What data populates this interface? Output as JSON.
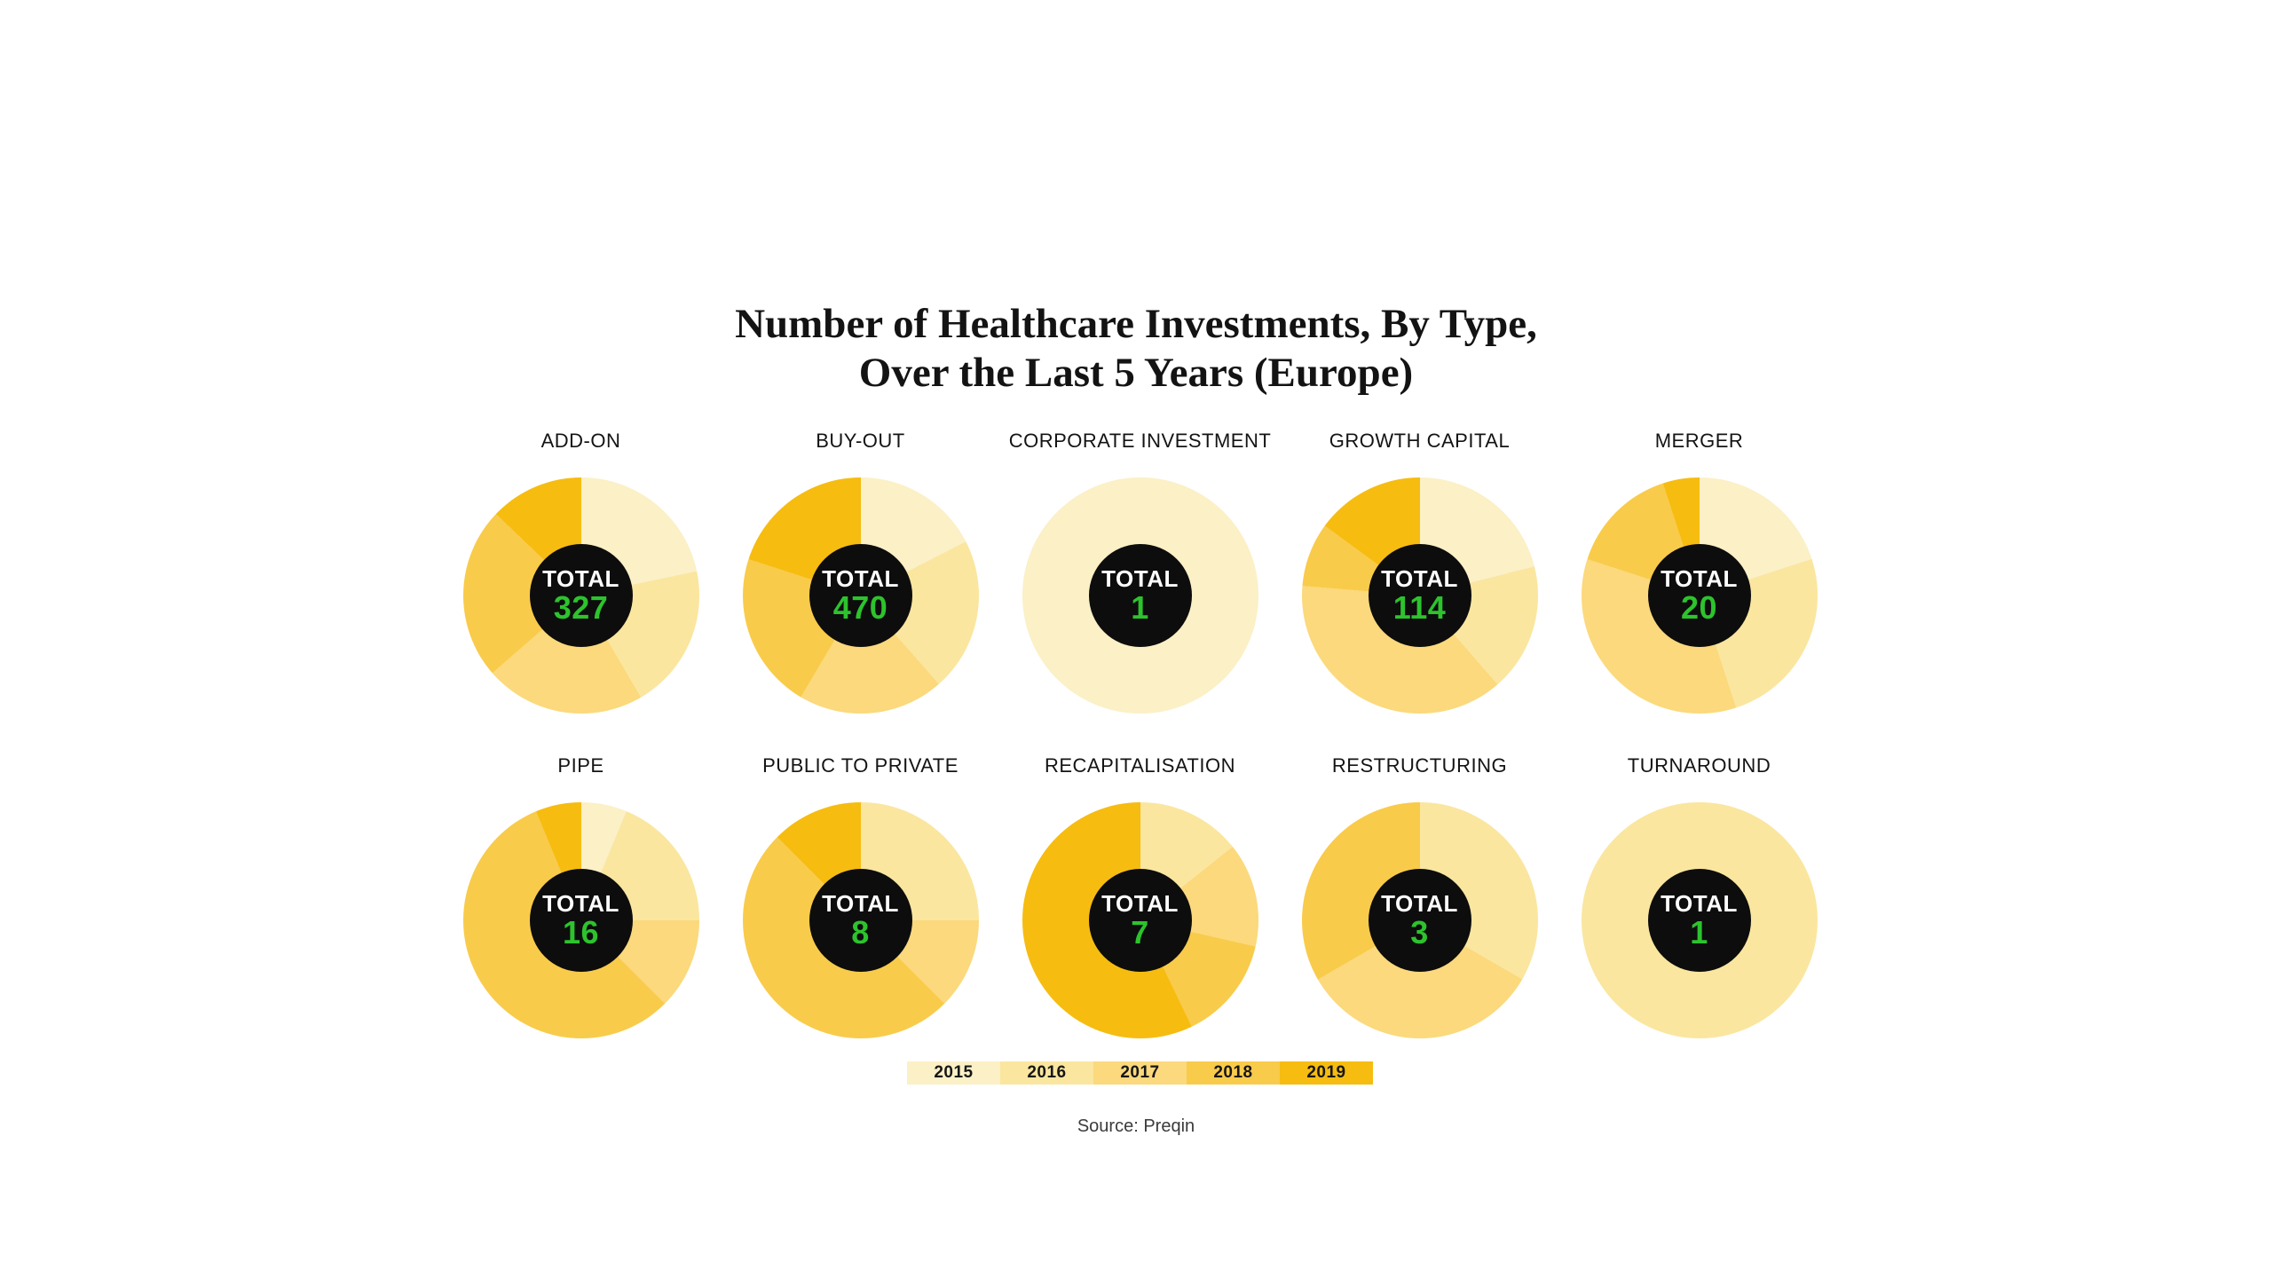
{
  "title": {
    "line1": "Number of Healthcare Investments, By Type,",
    "line2": "Over the Last 5 Years (Europe)"
  },
  "center_label": "TOTAL",
  "source_text": "Source: Preqin",
  "colors": {
    "accent_green_total": "#2DC32D",
    "center_disc": "#0d0d0d",
    "year_2015": "#FBF0C6",
    "year_2016": "#FAE69F",
    "year_2017": "#FBD97C",
    "year_2018": "#F9CB4B",
    "year_2019": "#F6BC10"
  },
  "legend": {
    "years": [
      "2015",
      "2016",
      "2017",
      "2018",
      "2019"
    ],
    "colors": [
      "#FBF0C6",
      "#FAE69F",
      "#FBD97C",
      "#F9CB4B",
      "#F6BC10"
    ]
  },
  "chart_data": {
    "type": "pie",
    "title": "Number of Healthcare Investments, By Type, Over the Last 5 Years (Europe)",
    "legend_position": "bottom",
    "series_keys": [
      "2015",
      "2016",
      "2017",
      "2018",
      "2019"
    ],
    "series_colors": [
      "#FBF0C6",
      "#FAE69F",
      "#FBD97C",
      "#F9CB4B",
      "#F6BC10"
    ],
    "slice_order": "clockwise-from-top",
    "charts": [
      {
        "label": "ADD-ON",
        "total": 327,
        "values": [
          71,
          65,
          72,
          77,
          42
        ]
      },
      {
        "label": "BUY-OUT",
        "total": 470,
        "values": [
          82,
          99,
          94,
          101,
          94
        ]
      },
      {
        "label": "CORPORATE INVESTMENT",
        "total": 1,
        "values": [
          1,
          0,
          0,
          0,
          0
        ]
      },
      {
        "label": "GROWTH CAPITAL",
        "total": 114,
        "values": [
          24,
          20,
          43,
          10,
          17
        ]
      },
      {
        "label": "MERGER",
        "total": 20,
        "values": [
          4,
          5,
          7,
          3,
          1
        ]
      },
      {
        "label": "PIPE",
        "total": 16,
        "values": [
          1,
          3,
          2,
          9,
          1
        ]
      },
      {
        "label": "PUBLIC TO PRIVATE",
        "total": 8,
        "values": [
          0,
          2,
          1,
          4,
          1
        ]
      },
      {
        "label": "RECAPITALISATION",
        "total": 7,
        "values": [
          0,
          1,
          1,
          1,
          4
        ]
      },
      {
        "label": "RESTRUCTURING",
        "total": 3,
        "values": [
          0,
          1,
          1,
          1,
          0
        ]
      },
      {
        "label": "TURNAROUND",
        "total": 1,
        "values": [
          0,
          1,
          0,
          0,
          0
        ]
      }
    ]
  }
}
